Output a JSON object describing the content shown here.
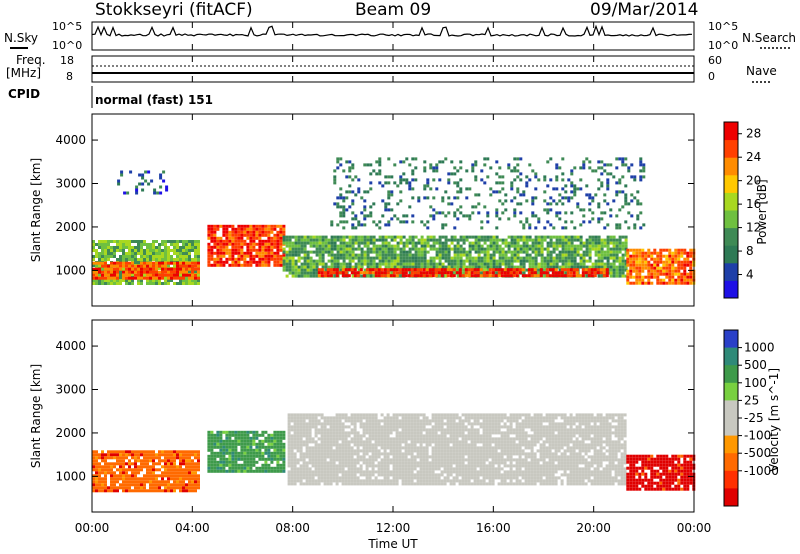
{
  "header": {
    "station": "Stokkseyri (fitACF)",
    "beam": "Beam 09",
    "date": "09/Mar/2014"
  },
  "top_panels": {
    "nsky_label": "N.Sky",
    "nsky_ticks": [
      "10^5",
      "10^0"
    ],
    "nsearch_label": "N.Search",
    "nsearch_ticks": [
      "10^5",
      "10^0"
    ],
    "freq_label_1": "Freq.",
    "freq_label_2": "[MHz]",
    "freq_ticks": [
      "18",
      "8"
    ],
    "nave_label": "Nave",
    "nave_ticks": [
      "60",
      "0"
    ],
    "cpid_label": "CPID",
    "cpid_value": "normal (fast) 151"
  },
  "colors": {
    "scale": [
      "#1e10e6",
      "#1e3fa8",
      "#2e7a55",
      "#3f8a55",
      "#6fc040",
      "#a8d820",
      "#ffc800",
      "#ff8c00",
      "#ff4000",
      "#ee0000"
    ],
    "velocity": [
      "#2a40c8",
      "#2f8a78",
      "#3e9a4a",
      "#78d040",
      "#c8c8c0",
      "#c8c8c0",
      "#ff9800",
      "#ff6a00",
      "#ff3000",
      "#e00000"
    ],
    "ground": "#c8c8c0"
  },
  "chart_data": [
    {
      "type": "heatmap",
      "title": "Power",
      "xlabel": "Time UT",
      "ylabel": "Slant Range [km]",
      "x_ticks": [
        "00:00",
        "04:00",
        "08:00",
        "12:00",
        "16:00",
        "20:00",
        "00:00"
      ],
      "y_ticks": [
        "1000",
        "2000",
        "3000",
        "4000"
      ],
      "xlim": [
        0,
        24
      ],
      "ylim": [
        180,
        4600
      ],
      "colorbar": {
        "label": "Power [dB]",
        "ticks": [
          "4",
          "8",
          "12",
          "16",
          "20",
          "24",
          "28"
        ],
        "range": [
          0,
          30
        ]
      },
      "echo_regions": [
        {
          "t_start": 0.0,
          "t_end": 4.3,
          "range_min": 700,
          "range_max": 1700,
          "value": 14
        },
        {
          "t_start": 0.0,
          "t_end": 4.3,
          "range_min": 800,
          "range_max": 1200,
          "value": 25
        },
        {
          "t_start": 4.6,
          "t_end": 7.6,
          "range_min": 1150,
          "range_max": 2050,
          "value": 26
        },
        {
          "t_start": 7.6,
          "t_end": 21.3,
          "range_min": 850,
          "range_max": 1800,
          "value": 12
        },
        {
          "t_start": 9.0,
          "t_end": 20.5,
          "range_min": 880,
          "range_max": 1050,
          "value": 27
        },
        {
          "t_start": 21.3,
          "t_end": 24.0,
          "range_min": 700,
          "range_max": 1500,
          "value": 24
        },
        {
          "t_start": 1.0,
          "t_end": 3.0,
          "range_min": 2700,
          "range_max": 3300,
          "value": 6
        },
        {
          "t_start": 9.5,
          "t_end": 22.0,
          "range_min": 2000,
          "range_max": 3600,
          "value": 8
        }
      ]
    },
    {
      "type": "heatmap",
      "title": "Velocity",
      "xlabel": "Time UT",
      "ylabel": "Slant Range [km]",
      "x_ticks": [
        "00:00",
        "04:00",
        "08:00",
        "12:00",
        "16:00",
        "20:00",
        "00:00"
      ],
      "y_ticks": [
        "1000",
        "2000",
        "3000",
        "4000"
      ],
      "xlim": [
        0,
        24
      ],
      "ylim": [
        180,
        4600
      ],
      "colorbar": {
        "label": "Velocity [m s^-1]",
        "ticks": [
          "1000",
          "500",
          "100",
          "25",
          "-25",
          "-100",
          "-500",
          "-1000"
        ]
      },
      "echo_regions": [
        {
          "t_start": 0.0,
          "t_end": 4.3,
          "range_min": 700,
          "range_max": 1600,
          "value": -300
        },
        {
          "t_start": 4.6,
          "t_end": 7.6,
          "range_min": 1100,
          "range_max": 2050,
          "value": 300
        },
        {
          "t_start": 7.8,
          "t_end": 21.3,
          "range_min": 850,
          "range_max": 2450,
          "value": 0
        },
        {
          "t_start": 21.3,
          "t_end": 24.0,
          "range_min": 700,
          "range_max": 1500,
          "value": -700
        }
      ]
    }
  ]
}
